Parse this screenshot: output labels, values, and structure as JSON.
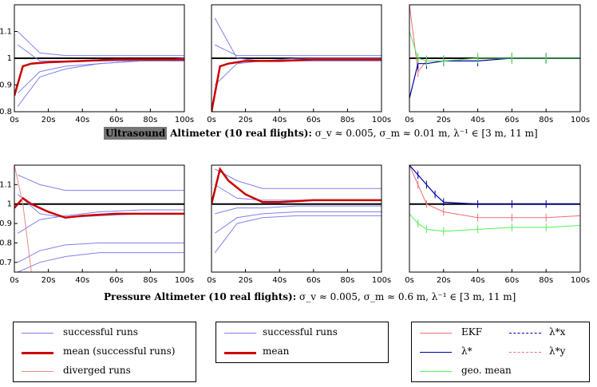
{
  "chart_data": [
    {
      "panel": "ultrasound-successful",
      "type": "line",
      "x_ticks": [
        "0s",
        "20s",
        "40s",
        "60s",
        "80s",
        "100s"
      ],
      "y_ticks": [
        "0.8",
        "0.9",
        "1",
        "1.1"
      ],
      "xlim": [
        0,
        100
      ],
      "ylim": [
        0.8,
        1.2
      ],
      "series": [
        {
          "name": "successful runs",
          "runs": [
            [
              0.87,
              0.95,
              0.97,
              0.98,
              0.99,
              0.99
            ],
            [
              1.1,
              1.02,
              1.01,
              1.01,
              1.01,
              1.01
            ],
            [
              0.82,
              0.93,
              0.96,
              0.98,
              0.99,
              1.0
            ],
            [
              1.05,
              0.99,
              0.99,
              0.99,
              0.99,
              0.99
            ]
          ],
          "x": [
            2,
            15,
            30,
            50,
            75,
            100
          ]
        },
        {
          "name": "mean (successful runs)",
          "x": [
            0,
            5,
            10,
            20,
            40,
            60,
            80,
            100
          ],
          "values": [
            0.86,
            0.97,
            0.98,
            0.985,
            0.99,
            0.995,
            0.995,
            0.995
          ]
        }
      ]
    },
    {
      "panel": "ultrasound-diverged",
      "type": "line",
      "x_ticks": [
        "0s",
        "20s",
        "40s",
        "60s",
        "80s",
        "100s"
      ],
      "xlim": [
        0,
        100
      ],
      "ylim": [
        0.8,
        1.2
      ],
      "series": [
        {
          "name": "successful runs",
          "runs": [
            [
              1.15,
              1.0,
              0.99,
              0.99,
              0.99,
              0.99
            ],
            [
              0.9,
              0.98,
              0.99,
              1.0,
              1.0,
              1.0
            ],
            [
              1.05,
              1.01,
              1.01,
              1.01,
              1.01,
              1.01
            ]
          ],
          "x": [
            2,
            15,
            30,
            50,
            75,
            100
          ]
        },
        {
          "name": "mean",
          "x": [
            0,
            5,
            10,
            20,
            40,
            60,
            80,
            100
          ],
          "values": [
            0.8,
            0.97,
            0.98,
            0.99,
            0.99,
            0.995,
            0.995,
            0.995
          ]
        }
      ]
    },
    {
      "panel": "ultrasound-comparison",
      "type": "line",
      "x_ticks": [
        "0s",
        "20s",
        "40s",
        "60s",
        "80s",
        "100s"
      ],
      "xlim": [
        0,
        100
      ],
      "ylim": [
        0.8,
        1.2
      ],
      "series": [
        {
          "name": "EKF",
          "x": [
            0,
            5,
            10,
            20,
            40,
            60,
            80,
            100
          ],
          "values": [
            1.2,
            0.95,
            0.99,
            0.99,
            1.0,
            1.0,
            1.0,
            1.0
          ]
        },
        {
          "name": "lambda*",
          "x": [
            0,
            5,
            10,
            20,
            40,
            60,
            80,
            100
          ],
          "values": [
            0.85,
            0.98,
            0.98,
            0.99,
            0.99,
            1.0,
            1.0,
            1.0
          ]
        },
        {
          "name": "geo. mean",
          "x": [
            0,
            5,
            10,
            20,
            40,
            60,
            80,
            100
          ],
          "values": [
            1.1,
            1.0,
            0.99,
            0.99,
            1.0,
            1.0,
            1.0,
            1.0
          ]
        }
      ]
    },
    {
      "panel": "pressure-successful",
      "type": "line",
      "x_ticks": [
        "0s",
        "20s",
        "40s",
        "60s",
        "80s",
        "100s"
      ],
      "y_ticks": [
        "0.7",
        "0.8",
        "0.9",
        "1",
        "1.1"
      ],
      "xlim": [
        0,
        100
      ],
      "ylim": [
        0.65,
        1.2
      ],
      "series": [
        {
          "name": "successful runs",
          "runs": [
            [
              1.15,
              1.1,
              1.07,
              1.07,
              1.07,
              1.07
            ],
            [
              0.85,
              0.92,
              0.94,
              0.96,
              0.97,
              0.97
            ],
            [
              0.7,
              0.76,
              0.79,
              0.8,
              0.8,
              0.8
            ],
            [
              0.65,
              0.7,
              0.73,
              0.75,
              0.75,
              0.75
            ],
            [
              1.05,
              0.95,
              0.93,
              0.94,
              0.95,
              0.95
            ]
          ],
          "x": [
            2,
            15,
            30,
            50,
            75,
            100
          ]
        },
        {
          "name": "mean (successful runs)",
          "x": [
            0,
            5,
            10,
            20,
            30,
            40,
            60,
            80,
            100
          ],
          "values": [
            0.98,
            1.03,
            1.0,
            0.96,
            0.93,
            0.94,
            0.95,
            0.95,
            0.95
          ]
        },
        {
          "name": "diverged runs",
          "x": [
            0,
            5,
            10
          ],
          "values": [
            1.2,
            1.0,
            0.65
          ]
        }
      ]
    },
    {
      "panel": "pressure-diverged",
      "type": "line",
      "x_ticks": [
        "0s",
        "20s",
        "40s",
        "60s",
        "80s",
        "100s"
      ],
      "xlim": [
        0,
        100
      ],
      "ylim": [
        0.65,
        1.2
      ],
      "series": [
        {
          "name": "successful runs",
          "runs": [
            [
              1.18,
              1.12,
              1.08,
              1.08,
              1.08,
              1.08
            ],
            [
              0.95,
              0.98,
              0.98,
              0.99,
              0.99,
              0.99
            ],
            [
              0.85,
              0.93,
              0.95,
              0.96,
              0.96,
              0.96
            ],
            [
              1.1,
              1.03,
              1.02,
              1.02,
              1.02,
              1.02
            ],
            [
              0.75,
              0.9,
              0.93,
              0.94,
              0.94,
              0.94
            ]
          ],
          "x": [
            2,
            15,
            30,
            50,
            75,
            100
          ]
        },
        {
          "name": "mean",
          "x": [
            0,
            5,
            10,
            20,
            30,
            40,
            60,
            80,
            100
          ],
          "values": [
            1.0,
            1.18,
            1.12,
            1.05,
            1.01,
            1.01,
            1.02,
            1.02,
            1.02
          ]
        }
      ]
    },
    {
      "panel": "pressure-comparison",
      "type": "line",
      "x_ticks": [
        "0s",
        "20s",
        "40s",
        "60s",
        "80s",
        "100s"
      ],
      "xlim": [
        0,
        100
      ],
      "ylim": [
        0.65,
        1.2
      ],
      "series": [
        {
          "name": "EKF",
          "x": [
            0,
            5,
            10,
            20,
            40,
            60,
            80,
            100
          ],
          "values": [
            1.2,
            1.1,
            1.0,
            0.96,
            0.93,
            0.93,
            0.93,
            0.94
          ]
        },
        {
          "name": "lambda*",
          "x": [
            0,
            5,
            10,
            15,
            20,
            40,
            60,
            80,
            100
          ],
          "values": [
            1.2,
            1.15,
            1.1,
            1.05,
            1.01,
            1.0,
            1.0,
            1.0,
            1.0
          ]
        },
        {
          "name": "geo. mean",
          "x": [
            0,
            5,
            10,
            20,
            40,
            60,
            80,
            100
          ],
          "values": [
            0.95,
            0.9,
            0.87,
            0.86,
            0.87,
            0.88,
            0.88,
            0.89
          ]
        }
      ]
    }
  ],
  "captions": {
    "ultrasound": {
      "highlight": "Ultrasound",
      "rest_bold": "Altimeter (10 real flights):",
      "params": "σ_v ≈ 0.005, σ_m ≈ 0.01 m, λ⁻¹ ∈ [3 m, 11 m]"
    },
    "pressure": {
      "bold": "Pressure Altimeter (10 real flights):",
      "params": "σ_v ≈ 0.005, σ_m ≈ 0.6 m, λ⁻¹ ∈ [3 m, 11 m]"
    }
  },
  "legends": {
    "left": [
      "successful runs",
      "mean (successful runs)",
      "diverged runs"
    ],
    "middle": [
      "successful runs",
      "mean"
    ],
    "right": [
      "EKF",
      "λ*",
      "geo. mean",
      "λ*x",
      "λ*y"
    ]
  },
  "colors": {
    "success": "#8080ee",
    "mean": "#cc0000",
    "diverged": "#ee8888",
    "ekf": "#ee7070",
    "lambda": "#0000aa",
    "geo": "#55ee55",
    "truth": "#000000"
  }
}
